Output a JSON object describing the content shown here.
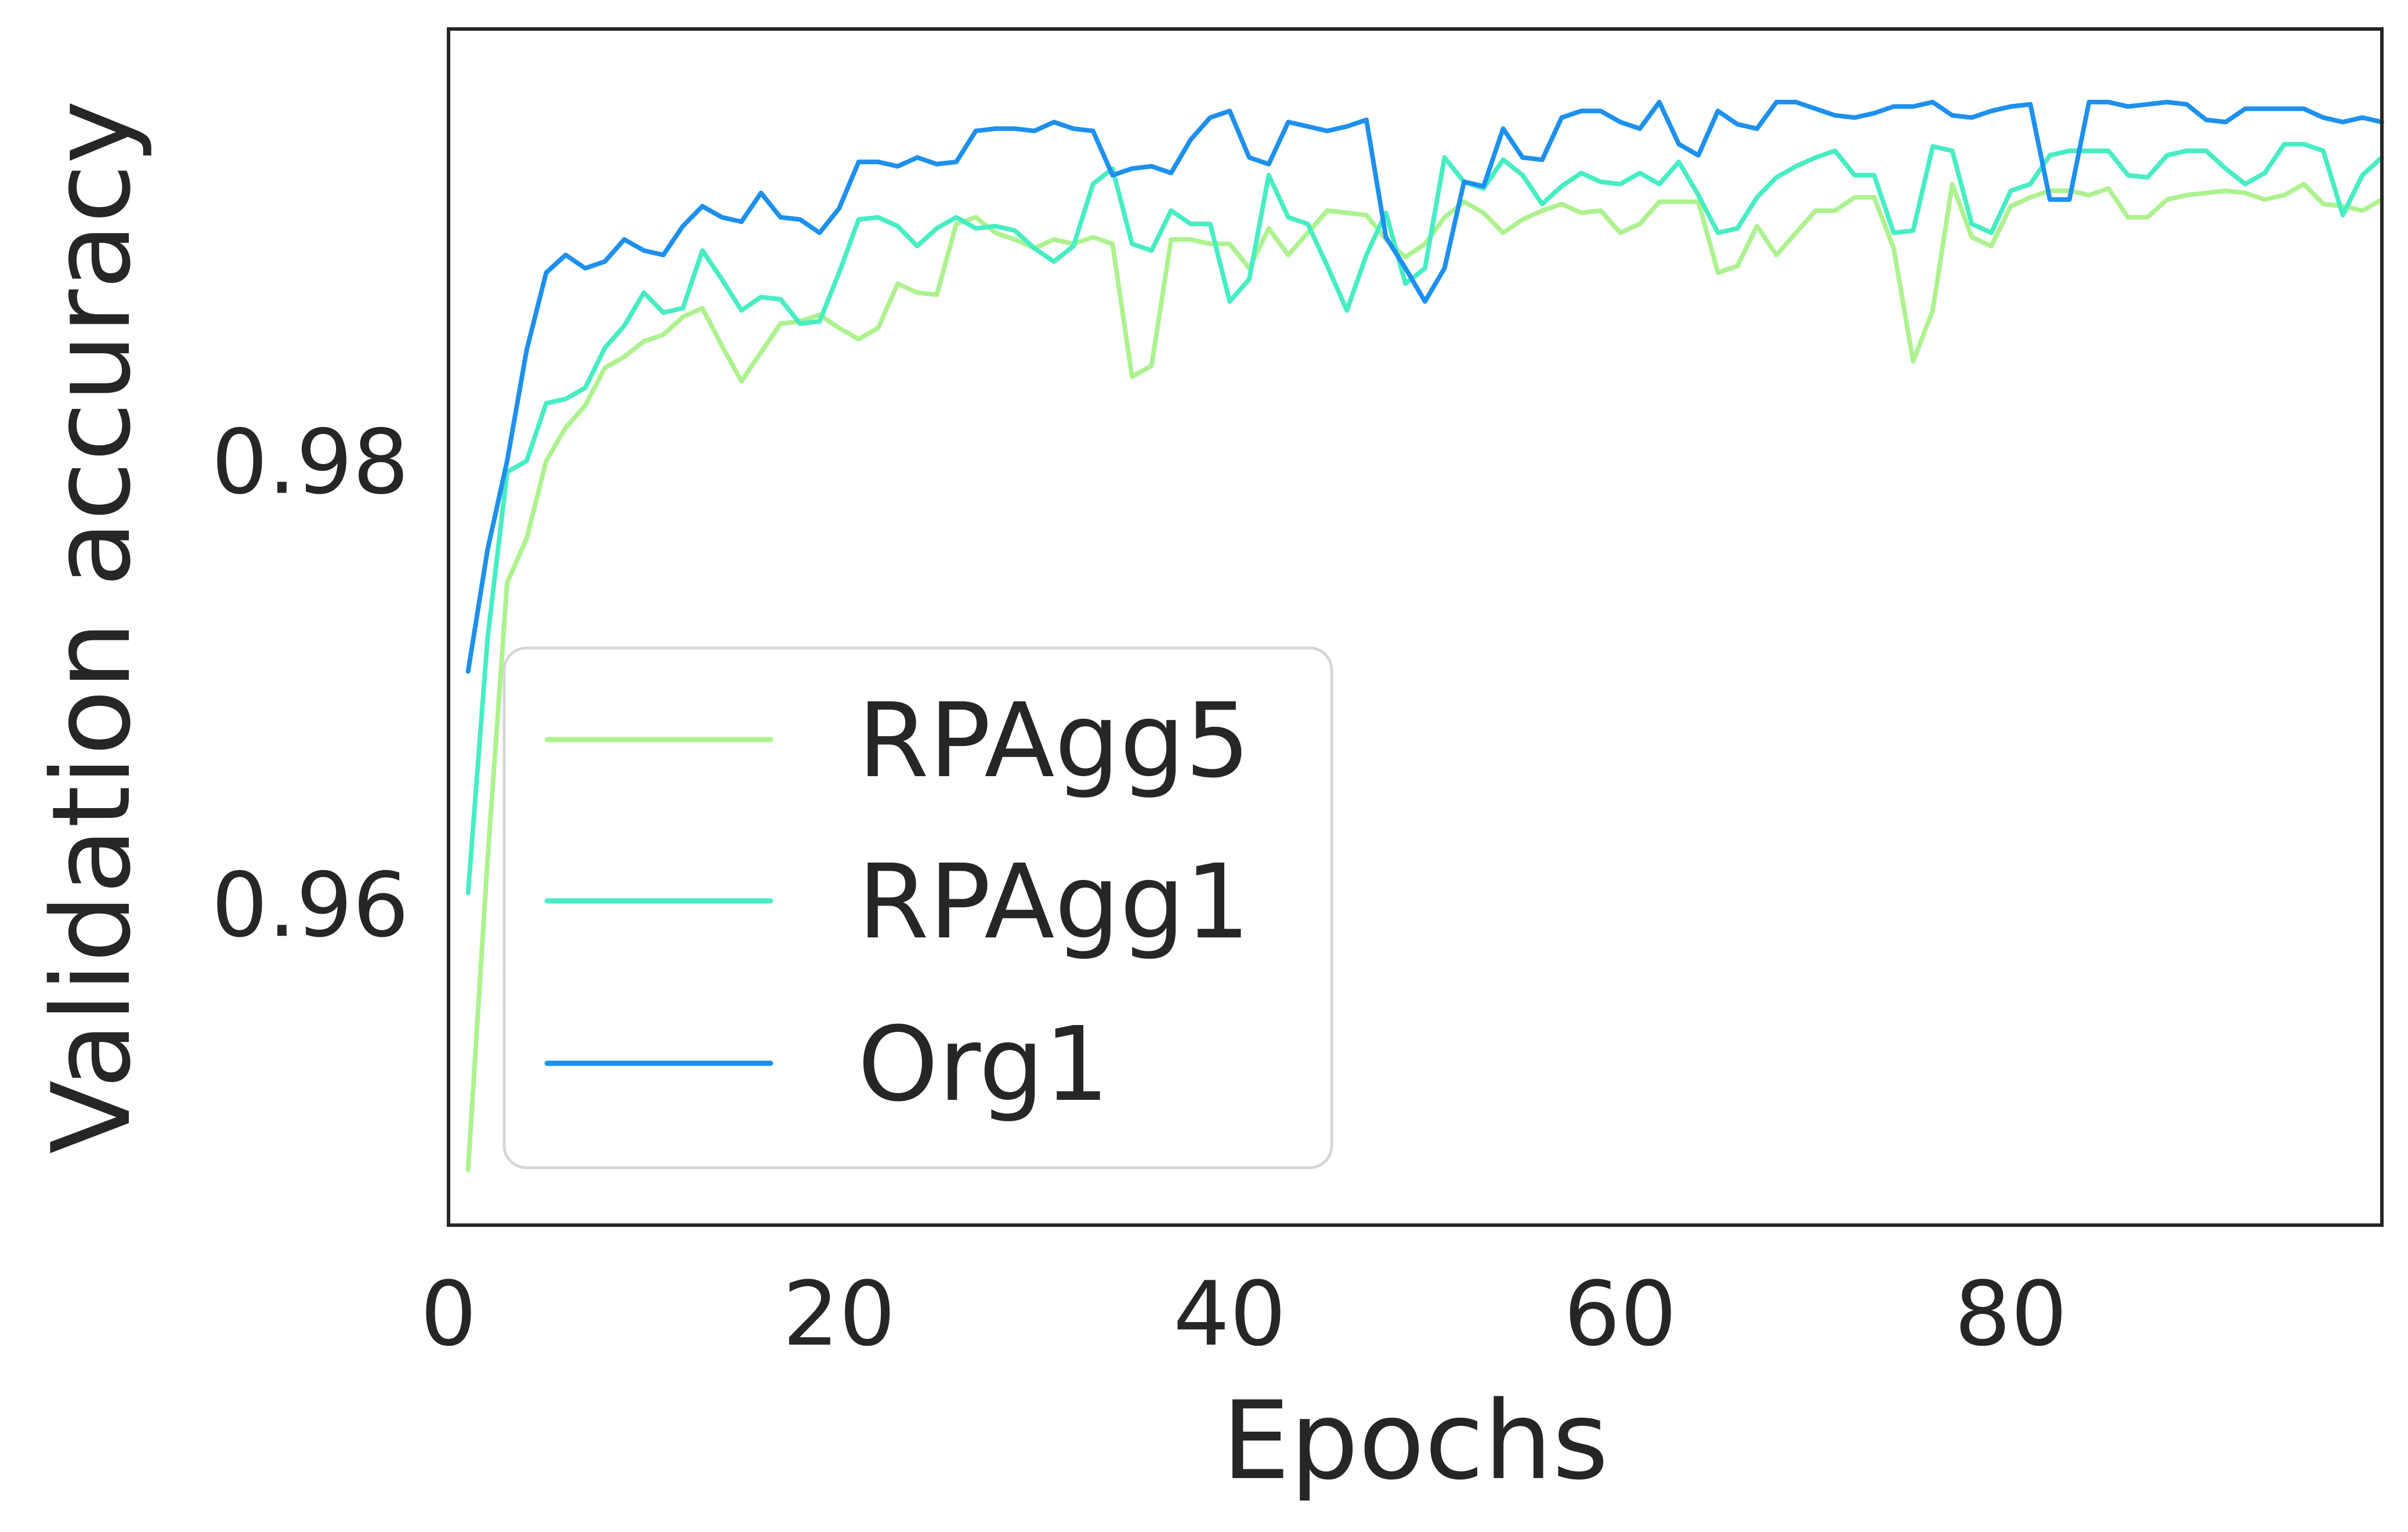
{
  "chart_data": {
    "type": "line",
    "title": "",
    "xlabel": "Epochs",
    "ylabel": "Validation accuracy",
    "xlim": [
      0,
      99
    ],
    "ylim": [
      0.9455,
      0.9995
    ],
    "xticks": [
      0,
      20,
      40,
      60,
      80
    ],
    "xtick_labels": [
      "0",
      "20",
      "40",
      "60",
      "80"
    ],
    "yticks": [
      0.96,
      0.98
    ],
    "ytick_labels": [
      "0.96",
      "0.98"
    ],
    "grid": false,
    "legend_position": "lower-left",
    "series": [
      {
        "name": "RPAgg5",
        "color": "#adf28f",
        "x": [
          1,
          2,
          3,
          4,
          5,
          6,
          7,
          8,
          9,
          10,
          11,
          12,
          13,
          14,
          15,
          16,
          17,
          18,
          19,
          20,
          21,
          22,
          23,
          24,
          25,
          26,
          27,
          28,
          29,
          30,
          31,
          32,
          33,
          34,
          35,
          36,
          37,
          38,
          39,
          40,
          41,
          42,
          43,
          44,
          45,
          46,
          47,
          48,
          49,
          50,
          51,
          52,
          53,
          54,
          55,
          56,
          57,
          58,
          59,
          60,
          61,
          62,
          63,
          64,
          65,
          66,
          67,
          68,
          69,
          70,
          71,
          72,
          73,
          74,
          75,
          76,
          77,
          78,
          79,
          80,
          81,
          82,
          83,
          84,
          85,
          86,
          87,
          88,
          89,
          90,
          91,
          92,
          93,
          94,
          95,
          96,
          97,
          98,
          99
        ],
        "y": [
          0.948,
          0.962,
          0.9745,
          0.9765,
          0.98,
          0.9815,
          0.9825,
          0.9842,
          0.9847,
          0.9854,
          0.9857,
          0.9865,
          0.9869,
          0.9852,
          0.9836,
          0.9849,
          0.9862,
          0.9863,
          0.9866,
          0.986,
          0.9855,
          0.986,
          0.988,
          0.9876,
          0.9875,
          0.9907,
          0.991,
          0.9903,
          0.99,
          0.9896,
          0.99,
          0.9898,
          0.9901,
          0.9898,
          0.9838,
          0.9843,
          0.99,
          0.99,
          0.9898,
          0.9898,
          0.9887,
          0.9905,
          0.9893,
          0.9903,
          0.9913,
          0.9912,
          0.9911,
          0.99,
          0.9892,
          0.9898,
          0.991,
          0.9917,
          0.9912,
          0.9903,
          0.9909,
          0.9913,
          0.9916,
          0.9912,
          0.9913,
          0.9903,
          0.9907,
          0.9917,
          0.9917,
          0.9917,
          0.9885,
          0.9888,
          0.9906,
          0.9893,
          0.9903,
          0.9913,
          0.9913,
          0.9919,
          0.9919,
          0.9896,
          0.9845,
          0.9868,
          0.9925,
          0.9901,
          0.9897,
          0.9915,
          0.9919,
          0.9922,
          0.9922,
          0.992,
          0.9923,
          0.991,
          0.991,
          0.9918,
          0.992,
          0.9921,
          0.9922,
          0.9921,
          0.9918,
          0.992,
          0.9925,
          0.9916,
          0.9915,
          0.9913,
          0.9918
        ]
      },
      {
        "name": "RPAgg1",
        "color": "#47edc3",
        "x": [
          1,
          2,
          3,
          4,
          5,
          6,
          7,
          8,
          9,
          10,
          11,
          12,
          13,
          14,
          15,
          16,
          17,
          18,
          19,
          20,
          21,
          22,
          23,
          24,
          25,
          26,
          27,
          28,
          29,
          30,
          31,
          32,
          33,
          34,
          35,
          36,
          37,
          38,
          39,
          40,
          41,
          42,
          43,
          44,
          45,
          46,
          47,
          48,
          49,
          50,
          51,
          52,
          53,
          54,
          55,
          56,
          57,
          58,
          59,
          60,
          61,
          62,
          63,
          64,
          65,
          66,
          67,
          68,
          69,
          70,
          71,
          72,
          73,
          74,
          75,
          76,
          77,
          78,
          79,
          80,
          81,
          82,
          83,
          84,
          85,
          86,
          87,
          88,
          89,
          90,
          91,
          92,
          93,
          94,
          95,
          96,
          97,
          98,
          99
        ],
        "y": [
          0.9605,
          0.972,
          0.9795,
          0.98,
          0.9826,
          0.9828,
          0.9833,
          0.9851,
          0.9861,
          0.9876,
          0.9867,
          0.9869,
          0.9895,
          0.9882,
          0.9868,
          0.9874,
          0.9873,
          0.9862,
          0.9863,
          0.9885,
          0.9909,
          0.991,
          0.9906,
          0.9897,
          0.9905,
          0.991,
          0.9905,
          0.9906,
          0.9904,
          0.9896,
          0.989,
          0.9897,
          0.9925,
          0.9932,
          0.9898,
          0.9895,
          0.9913,
          0.9907,
          0.9907,
          0.9872,
          0.9882,
          0.9929,
          0.991,
          0.9907,
          0.9888,
          0.9868,
          0.9893,
          0.9912,
          0.988,
          0.9887,
          0.9937,
          0.9926,
          0.9923,
          0.9936,
          0.9929,
          0.9916,
          0.9924,
          0.993,
          0.9926,
          0.9925,
          0.993,
          0.9925,
          0.9935,
          0.992,
          0.9903,
          0.9905,
          0.9919,
          0.9928,
          0.9933,
          0.9937,
          0.994,
          0.9929,
          0.9929,
          0.9903,
          0.9904,
          0.9942,
          0.994,
          0.9907,
          0.9903,
          0.9922,
          0.9925,
          0.9938,
          0.994,
          0.994,
          0.994,
          0.9929,
          0.9928,
          0.9938,
          0.994,
          0.994,
          0.9932,
          0.9925,
          0.993,
          0.9943,
          0.9943,
          0.994,
          0.9911,
          0.9929,
          0.9937
        ]
      },
      {
        "name": "Org1",
        "color": "#1e90ee",
        "x": [
          1,
          2,
          3,
          4,
          5,
          6,
          7,
          8,
          9,
          10,
          11,
          12,
          13,
          14,
          15,
          16,
          17,
          18,
          19,
          20,
          21,
          22,
          23,
          24,
          25,
          26,
          27,
          28,
          29,
          30,
          31,
          32,
          33,
          34,
          35,
          36,
          37,
          38,
          39,
          40,
          41,
          42,
          43,
          44,
          45,
          46,
          47,
          48,
          49,
          50,
          51,
          52,
          53,
          54,
          55,
          56,
          57,
          58,
          59,
          60,
          61,
          62,
          63,
          64,
          65,
          66,
          67,
          68,
          69,
          70,
          71,
          72,
          73,
          74,
          75,
          76,
          77,
          78,
          79,
          80,
          81,
          82,
          83,
          84,
          85,
          86,
          87,
          88,
          89,
          90,
          91,
          92,
          93,
          94,
          95,
          96,
          97,
          98,
          99
        ],
        "y": [
          0.9705,
          0.976,
          0.98,
          0.985,
          0.9885,
          0.9893,
          0.9887,
          0.989,
          0.99,
          0.9895,
          0.9893,
          0.9906,
          0.9915,
          0.991,
          0.9908,
          0.9921,
          0.991,
          0.9909,
          0.9903,
          0.9914,
          0.9935,
          0.9935,
          0.9933,
          0.9937,
          0.9934,
          0.9935,
          0.9949,
          0.995,
          0.995,
          0.9949,
          0.9953,
          0.995,
          0.9949,
          0.9929,
          0.9932,
          0.9933,
          0.993,
          0.9945,
          0.9955,
          0.9958,
          0.9937,
          0.9934,
          0.9953,
          0.9951,
          0.9949,
          0.9951,
          0.9954,
          0.9901,
          0.9887,
          0.9872,
          0.9887,
          0.9926,
          0.9924,
          0.995,
          0.9937,
          0.9936,
          0.9955,
          0.9958,
          0.9958,
          0.9953,
          0.995,
          0.9962,
          0.9943,
          0.9938,
          0.9958,
          0.9952,
          0.995,
          0.9962,
          0.9962,
          0.9959,
          0.9956,
          0.9955,
          0.9957,
          0.996,
          0.996,
          0.9962,
          0.9956,
          0.9955,
          0.9958,
          0.996,
          0.9961,
          0.9918,
          0.9918,
          0.9962,
          0.9962,
          0.996,
          0.9961,
          0.9962,
          0.9961,
          0.9954,
          0.9953,
          0.9959,
          0.9959,
          0.9959,
          0.9959,
          0.9955,
          0.9953,
          0.9955,
          0.9953
        ]
      }
    ]
  }
}
